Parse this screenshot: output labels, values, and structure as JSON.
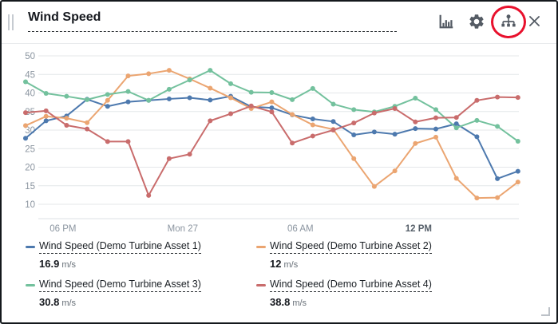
{
  "widget": {
    "title": "Wind Speed"
  },
  "toolbar": {
    "icons": {
      "chart_type": "bar-chart-icon",
      "settings": "gear-icon",
      "asset_tree": "tree-icon",
      "close": "close-icon",
      "drag": "drag-handle-icon",
      "resize": "resize-handle-icon"
    }
  },
  "annotation": {
    "shape": "ellipse",
    "target": "tree-icon",
    "color": "#e8112d"
  },
  "chart_data": {
    "type": "line",
    "title": "Wind Speed",
    "xlabel": "",
    "ylabel": "",
    "unit": "m/s",
    "grid": true,
    "legend_position": "bottom",
    "ylim": [
      6,
      51
    ],
    "y_ticks": [
      10,
      15,
      20,
      25,
      30,
      35,
      40,
      45,
      50
    ],
    "x_ticks": [
      {
        "label": "06 PM",
        "pos": 0.076,
        "bold": false
      },
      {
        "label": "Mon 27",
        "pos": 0.319,
        "bold": false
      },
      {
        "label": "06 AM",
        "pos": 0.558,
        "bold": false
      },
      {
        "label": "12 PM",
        "pos": 0.798,
        "bold": true
      }
    ],
    "series": [
      {
        "name": "Wind Speed (Demo Turbine Asset 1)",
        "color": "#4d79ae",
        "values": [
          27.8,
          32.5,
          33.8,
          38.3,
          36.4,
          37.6,
          38.0,
          38.4,
          38.7,
          38.1,
          39.1,
          36.3,
          36.0,
          34.1,
          33.0,
          32.3,
          28.7,
          29.5,
          28.9,
          30.4,
          30.3,
          31.7,
          28.2,
          16.9,
          18.9
        ]
      },
      {
        "name": "Wind Speed (Demo Turbine Asset 2)",
        "color": "#eba571",
        "values": [
          31.2,
          33.7,
          33.2,
          32.0,
          38.0,
          44.6,
          45.2,
          46.1,
          43.8,
          41.3,
          38.7,
          35.8,
          37.6,
          34.2,
          31.4,
          30.2,
          22.3,
          14.8,
          19.0,
          26.4,
          28.1,
          17.0,
          11.7,
          11.8,
          16.0
        ]
      },
      {
        "name": "Wind Speed (Demo Turbine Asset 3)",
        "color": "#73c19d",
        "values": [
          43.0,
          39.9,
          39.1,
          38.2,
          39.6,
          40.4,
          38.0,
          41.0,
          43.5,
          46.1,
          42.5,
          40.2,
          40.1,
          38.2,
          41.2,
          37.0,
          35.5,
          34.9,
          36.4,
          38.6,
          35.5,
          30.6,
          32.6,
          31.0,
          27.0
        ]
      },
      {
        "name": "Wind Speed (Demo Turbine Asset 4)",
        "color": "#c96c6c",
        "values": [
          34.7,
          35.2,
          31.3,
          30.3,
          26.9,
          26.9,
          12.4,
          22.3,
          23.5,
          32.5,
          34.4,
          36.5,
          34.9,
          26.5,
          28.4,
          30.0,
          31.9,
          34.6,
          35.8,
          32.2,
          33.3,
          33.4,
          38.0,
          38.9,
          38.8
        ]
      }
    ]
  },
  "legend": {
    "items": [
      {
        "label": "Wind Speed (Demo Turbine Asset 1)",
        "value": "16.9",
        "unit": "m/s",
        "color": "#4d79ae"
      },
      {
        "label": "Wind Speed (Demo Turbine Asset 2)",
        "value": "12",
        "unit": "m/s",
        "color": "#eba571"
      },
      {
        "label": "Wind Speed (Demo Turbine Asset 3)",
        "value": "30.8",
        "unit": "m/s",
        "color": "#73c19d"
      },
      {
        "label": "Wind Speed (Demo Turbine Asset 4)",
        "value": "38.8",
        "unit": "m/s",
        "color": "#c96c6c"
      }
    ]
  }
}
